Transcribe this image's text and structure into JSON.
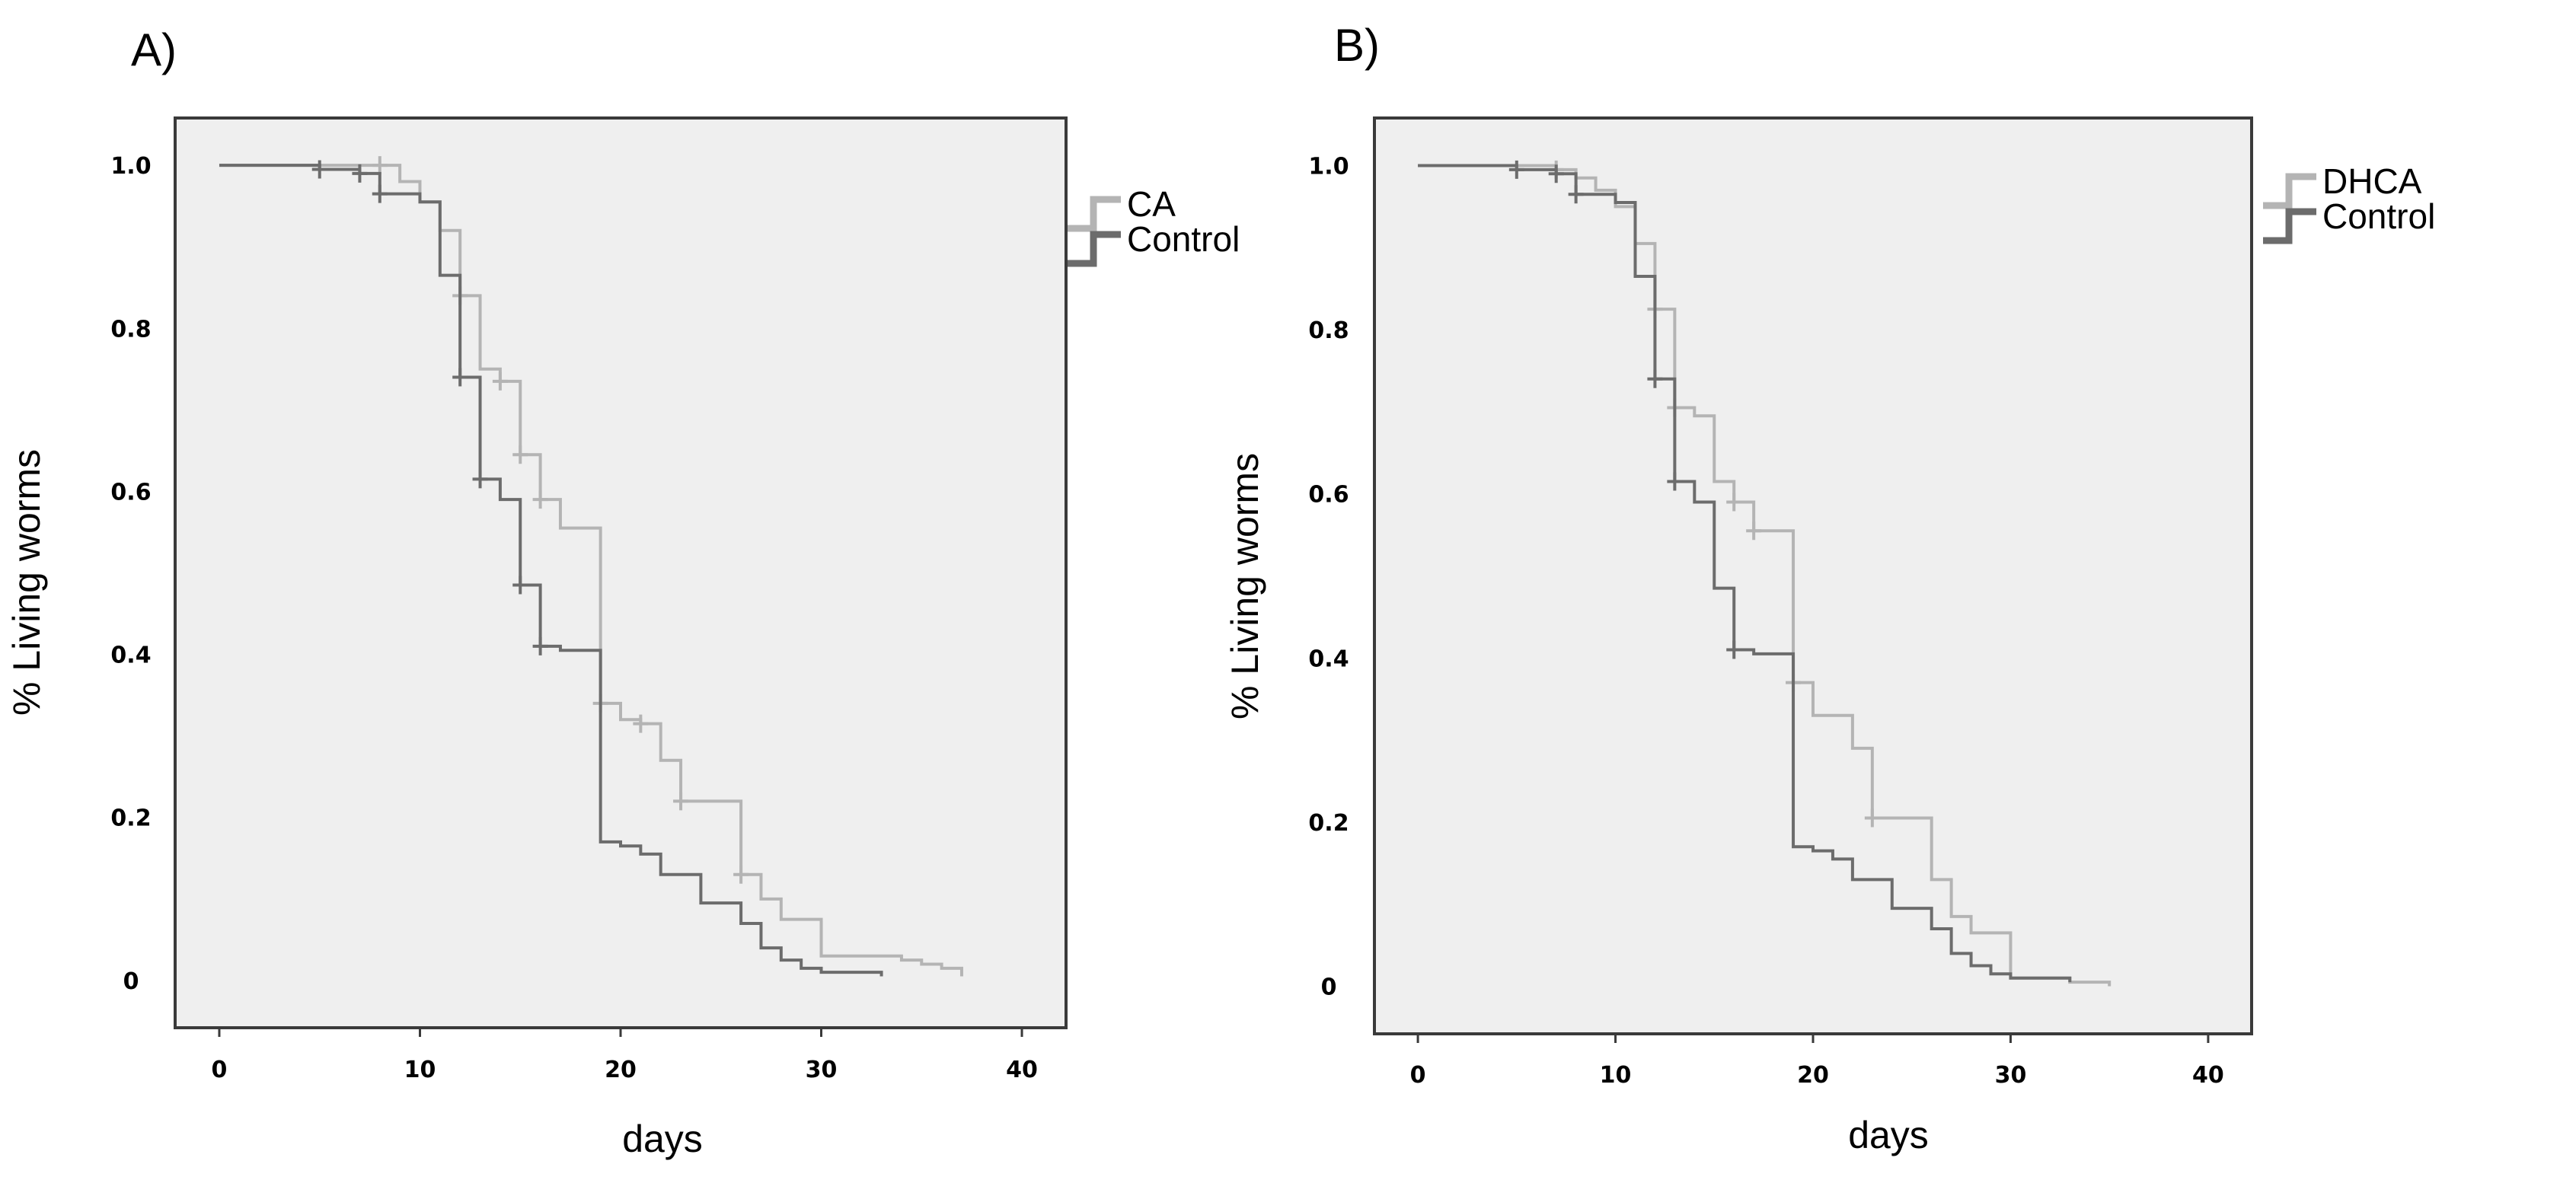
{
  "chart_data": [
    {
      "type": "line",
      "subtype": "kaplan-meier-step",
      "panel_label": "A)",
      "xlabel": "days",
      "ylabel": "% Living worms",
      "xlim": [
        -2.2,
        42.2
      ],
      "ylim": [
        -0.058,
        1.058
      ],
      "xticks": [
        0,
        10,
        20,
        30,
        40
      ],
      "xtick_labels": [
        "0",
        "10",
        "20",
        "30",
        "40"
      ],
      "yticks": [
        0,
        0.2,
        0.4,
        0.6,
        0.8,
        1.0
      ],
      "ytick_labels": [
        "0",
        "0.2",
        "0.4",
        "0.6",
        "0.8",
        "1.0"
      ],
      "legend_position": "top-right (outside plot)",
      "series": [
        {
          "name": "CA",
          "color": "#b4b4b4",
          "x": [
            0,
            8,
            9,
            10,
            11,
            12,
            13,
            14,
            15,
            16,
            17,
            19,
            20,
            21,
            22,
            23,
            26,
            27,
            28,
            30,
            34,
            35,
            36,
            37
          ],
          "y": [
            1.0,
            1.0,
            0.98,
            0.955,
            0.92,
            0.84,
            0.75,
            0.735,
            0.645,
            0.59,
            0.555,
            0.34,
            0.32,
            0.315,
            0.27,
            0.22,
            0.13,
            0.1,
            0.075,
            0.03,
            0.025,
            0.02,
            0.015,
            0.005
          ],
          "censor_x": [
            8,
            12,
            14,
            15,
            16,
            19,
            21,
            23,
            26
          ],
          "censor_y": [
            1.0,
            0.84,
            0.735,
            0.645,
            0.59,
            0.34,
            0.315,
            0.22,
            0.13
          ]
        },
        {
          "name": "Control",
          "color": "#6c6c6c",
          "x": [
            0,
            5,
            7,
            8,
            10,
            11,
            12,
            13,
            14,
            15,
            16,
            17,
            19,
            20,
            21,
            22,
            24,
            26,
            27,
            28,
            29,
            30,
            33
          ],
          "y": [
            1.0,
            0.995,
            0.99,
            0.965,
            0.955,
            0.865,
            0.74,
            0.615,
            0.59,
            0.485,
            0.41,
            0.405,
            0.17,
            0.165,
            0.155,
            0.13,
            0.095,
            0.07,
            0.04,
            0.025,
            0.015,
            0.01,
            0.005
          ],
          "censor_x": [
            5,
            7,
            8,
            12,
            13,
            15,
            16
          ],
          "censor_y": [
            0.995,
            0.99,
            0.965,
            0.74,
            0.615,
            0.485,
            0.41
          ]
        }
      ]
    },
    {
      "type": "line",
      "subtype": "kaplan-meier-step",
      "panel_label": "B)",
      "xlabel": "days",
      "ylabel": "% Living worms",
      "xlim": [
        -2.2,
        42.2
      ],
      "ylim": [
        -0.058,
        1.058
      ],
      "xticks": [
        0,
        10,
        20,
        30,
        40
      ],
      "xtick_labels": [
        "0",
        "10",
        "20",
        "30",
        "40"
      ],
      "yticks": [
        0,
        0.2,
        0.4,
        0.6,
        0.8,
        1.0
      ],
      "ytick_labels": [
        "0",
        "0.2",
        "0.4",
        "0.6",
        "0.8",
        "1.0"
      ],
      "legend_position": "top-right (outside plot)",
      "series": [
        {
          "name": "DHCA",
          "color": "#b4b4b4",
          "x": [
            0,
            7,
            8,
            9,
            10,
            11,
            12,
            13,
            14,
            15,
            16,
            17,
            19,
            20,
            22,
            23,
            26,
            27,
            28,
            30,
            33,
            35
          ],
          "y": [
            1.0,
            0.995,
            0.985,
            0.97,
            0.95,
            0.905,
            0.825,
            0.705,
            0.695,
            0.615,
            0.59,
            0.555,
            0.37,
            0.33,
            0.29,
            0.205,
            0.13,
            0.085,
            0.065,
            0.01,
            0.005,
            0.0
          ],
          "censor_x": [
            7,
            12,
            13,
            16,
            17,
            19,
            23
          ],
          "censor_y": [
            0.995,
            0.825,
            0.705,
            0.59,
            0.555,
            0.37,
            0.205
          ]
        },
        {
          "name": "Control",
          "color": "#6c6c6c",
          "x": [
            0,
            5,
            7,
            8,
            10,
            11,
            12,
            13,
            14,
            15,
            16,
            17,
            19,
            20,
            21,
            22,
            24,
            26,
            27,
            28,
            29,
            30,
            33
          ],
          "y": [
            1.0,
            0.995,
            0.99,
            0.965,
            0.955,
            0.865,
            0.74,
            0.615,
            0.59,
            0.485,
            0.41,
            0.405,
            0.17,
            0.165,
            0.155,
            0.13,
            0.095,
            0.07,
            0.04,
            0.025,
            0.015,
            0.01,
            0.005
          ],
          "censor_x": [
            5,
            7,
            8,
            12,
            13,
            16
          ],
          "censor_y": [
            0.995,
            0.99,
            0.965,
            0.74,
            0.615,
            0.41
          ]
        }
      ]
    }
  ]
}
